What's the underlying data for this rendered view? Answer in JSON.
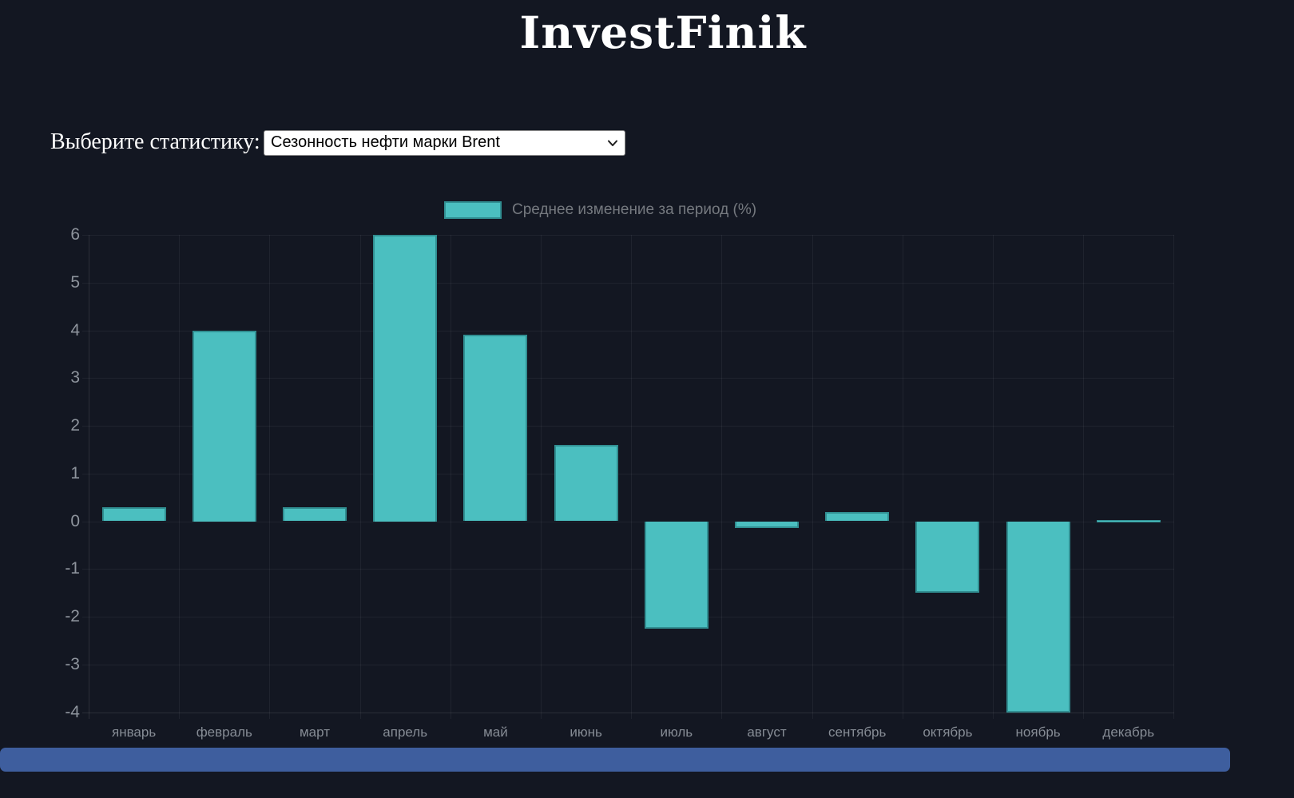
{
  "header": {
    "title": "InvestFinik"
  },
  "controls": {
    "label": "Выберите статистику:",
    "select": {
      "value": "Сезонность нефти марки Brent",
      "chevron_icon": "chevron-down"
    }
  },
  "chart_data": {
    "type": "bar",
    "title": "",
    "legend": {
      "position": "top",
      "label": "Среднее изменение за период (%)"
    },
    "categories": [
      "январь",
      "февраль",
      "март",
      "апрель",
      "май",
      "июнь",
      "июль",
      "август",
      "сентябрь",
      "октябрь",
      "ноябрь",
      "декабрь"
    ],
    "series": [
      {
        "name": "Среднее изменение за период (%)",
        "values": [
          0.3,
          4.0,
          0.3,
          6.0,
          3.9,
          1.6,
          -2.25,
          -0.15,
          0.2,
          -1.5,
          -4.0,
          0.0
        ]
      }
    ],
    "ylim": [
      -4,
      6
    ],
    "yticks": [
      6,
      5,
      4,
      3,
      2,
      1,
      0,
      -1,
      -2,
      -3,
      -4
    ],
    "grid": true,
    "colors": {
      "background": "#131722",
      "bar_fill": "#4BBFC0",
      "bar_border": "#318F92",
      "tick_text": "#8E949D",
      "legend_text": "#75797F",
      "bottom_bar": "#3E5E9E"
    }
  }
}
